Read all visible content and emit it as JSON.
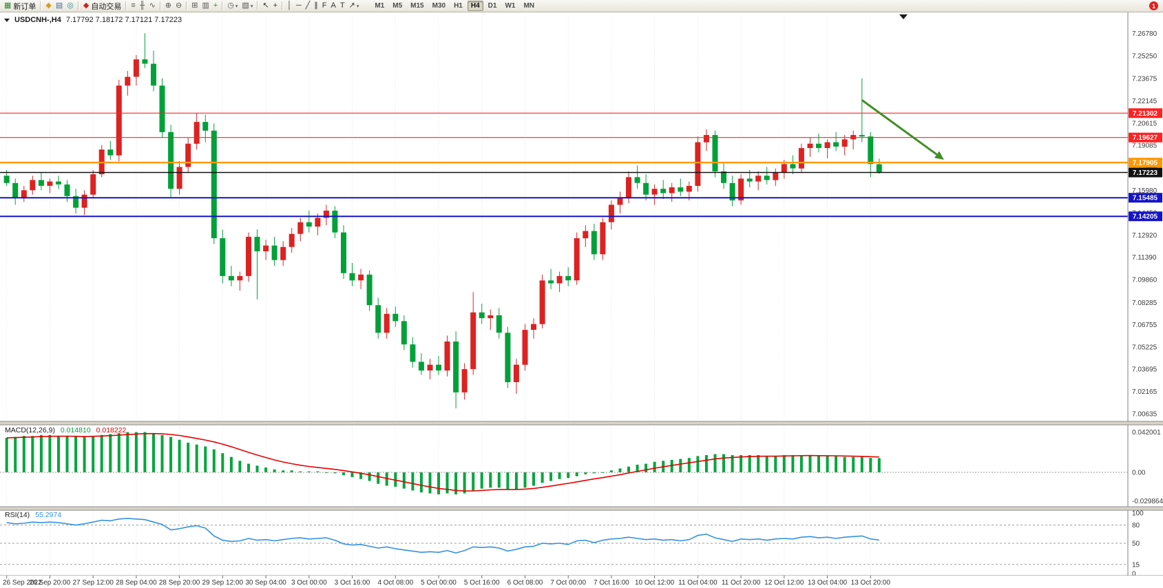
{
  "toolbar": {
    "notification_count": "1",
    "timeframes": [
      "M1",
      "M5",
      "M15",
      "M30",
      "H1",
      "H4",
      "D1",
      "W1",
      "MN"
    ],
    "active_timeframe": "H4",
    "groups": [
      {
        "items": [
          {
            "name": "new-order-button",
            "glyph": "▦",
            "glyph_color": "#2e8b2e",
            "label": "新订单"
          }
        ]
      },
      {
        "items": [
          {
            "name": "market-watch-icon",
            "glyph": "◆",
            "glyph_color": "#d4a017"
          },
          {
            "name": "data-window-icon",
            "glyph": "▤",
            "glyph_color": "#4a6da0"
          },
          {
            "name": "navigator-icon",
            "glyph": "◎",
            "glyph_color": "#2e8b8b"
          }
        ]
      },
      {
        "items": [
          {
            "name": "autotrading-button",
            "glyph": "◆",
            "glyph_color": "#cc2222",
            "label": "自动交易"
          }
        ]
      },
      {
        "items": [
          {
            "name": "bar-chart-icon",
            "glyph": "≡",
            "glyph_color": "#555555"
          },
          {
            "name": "candlestick-chart-icon",
            "glyph": "╫",
            "glyph_color": "#555555"
          },
          {
            "name": "line-chart-icon",
            "glyph": "∿",
            "glyph_color": "#555555"
          }
        ]
      },
      {
        "items": [
          {
            "name": "zoom-in-icon",
            "glyph": "⊕",
            "glyph_color": "#555555"
          },
          {
            "name": "zoom-out-icon",
            "glyph": "⊖",
            "glyph_color": "#555555"
          }
        ]
      },
      {
        "items": [
          {
            "name": "tile-windows-icon",
            "glyph": "⊞",
            "glyph_color": "#555555"
          },
          {
            "name": "auto-arrange-icon",
            "glyph": "▥",
            "glyph_color": "#555555"
          },
          {
            "name": "new-chart-icon",
            "glyph": "+",
            "glyph_color": "#2e8b2e"
          }
        ]
      },
      {
        "items": [
          {
            "name": "periods-icon",
            "glyph": "◷",
            "glyph_color": "#555555",
            "caret": true
          },
          {
            "name": "templates-icon",
            "glyph": "▧",
            "glyph_color": "#555555",
            "caret": true
          }
        ]
      },
      {
        "items": [
          {
            "name": "cursor-icon",
            "glyph": "↖",
            "glyph_color": "#333333"
          },
          {
            "name": "crosshair-icon",
            "glyph": "+",
            "glyph_color": "#333333"
          }
        ]
      },
      {
        "items": [
          {
            "name": "vertical-line-icon",
            "glyph": "│",
            "glyph_color": "#333333"
          },
          {
            "name": "horizontal-line-icon",
            "glyph": "─",
            "glyph_color": "#333333"
          },
          {
            "name": "trendline-icon",
            "glyph": "╱",
            "glyph_color": "#333333"
          },
          {
            "name": "channel-icon",
            "glyph": "∥",
            "glyph_color": "#333333"
          },
          {
            "name": "fibonacci-icon",
            "glyph": "F",
            "glyph_color": "#333333"
          },
          {
            "name": "text-icon",
            "glyph": "A",
            "glyph_color": "#333333"
          },
          {
            "name": "text-label-icon",
            "glyph": "T",
            "glyph_color": "#333333"
          },
          {
            "name": "arrows-icon",
            "glyph": "↗",
            "glyph_color": "#333333",
            "caret": true
          }
        ]
      }
    ]
  },
  "chart": {
    "title": "USDCNH-,H4",
    "ohlc": "7.17792 7.18172 7.17121 7.17223"
  },
  "chart_data": {
    "type": "candlestick",
    "symbol": "USDCNH-",
    "timeframe": "H4",
    "current_ohlc": {
      "open": "7.17792",
      "high": "7.18172",
      "low": "7.17121",
      "close": "7.17223"
    },
    "up_color": "#dd2222",
    "down_color": "#00a139",
    "price_axis_ticks": [
      "7.26780",
      "7.25250",
      "7.23675",
      "7.22145",
      "7.20615",
      "7.19085",
      "7.17555",
      "7.15980",
      "7.14450",
      "7.12920",
      "7.11390",
      "7.09860",
      "7.08285",
      "7.06755",
      "7.05225",
      "7.03695",
      "7.02165",
      "7.00635"
    ],
    "time_axis_labels": [
      "26 Sep 2022",
      "26 Sep 20:00",
      "27 Sep 12:00",
      "28 Sep 04:00",
      "28 Sep 20:00",
      "29 Sep 12:00",
      "30 Sep 04:00",
      "3 Oct 00:00",
      "3 Oct 16:00",
      "4 Oct 08:00",
      "5 Oct 00:00",
      "5 Oct 16:00",
      "6 Oct 08:00",
      "7 Oct 00:00",
      "7 Oct 16:00",
      "10 Oct 12:00",
      "11 Oct 04:00",
      "11 Oct 20:00",
      "12 Oct 12:00",
      "13 Oct 04:00",
      "13 Oct 20:00"
    ],
    "candles_ohlc": [
      [
        7.17,
        7.174,
        7.163,
        7.165
      ],
      [
        7.165,
        7.168,
        7.15,
        7.155
      ],
      [
        7.155,
        7.163,
        7.152,
        7.16
      ],
      [
        7.16,
        7.17,
        7.157,
        7.167
      ],
      [
        7.167,
        7.172,
        7.16,
        7.163
      ],
      [
        7.163,
        7.168,
        7.158,
        7.166
      ],
      [
        7.166,
        7.17,
        7.161,
        7.164
      ],
      [
        7.164,
        7.167,
        7.152,
        7.156
      ],
      [
        7.156,
        7.161,
        7.144,
        7.148
      ],
      [
        7.148,
        7.16,
        7.143,
        7.157
      ],
      [
        7.157,
        7.174,
        7.155,
        7.171
      ],
      [
        7.171,
        7.191,
        7.169,
        7.188
      ],
      [
        7.188,
        7.194,
        7.181,
        7.184
      ],
      [
        7.184,
        7.236,
        7.18,
        7.232
      ],
      [
        7.232,
        7.242,
        7.225,
        7.238
      ],
      [
        7.238,
        7.253,
        7.232,
        7.25
      ],
      [
        7.25,
        7.268,
        7.244,
        7.247
      ],
      [
        7.247,
        7.256,
        7.228,
        7.232
      ],
      [
        7.232,
        7.237,
        7.196,
        7.2
      ],
      [
        7.2,
        7.205,
        7.155,
        7.161
      ],
      [
        7.161,
        7.18,
        7.157,
        7.176
      ],
      [
        7.176,
        7.196,
        7.172,
        7.192
      ],
      [
        7.192,
        7.213,
        7.188,
        7.207
      ],
      [
        7.207,
        7.212,
        7.193,
        7.201
      ],
      [
        7.201,
        7.206,
        7.123,
        7.127
      ],
      [
        7.127,
        7.133,
        7.096,
        7.101
      ],
      [
        7.101,
        7.108,
        7.094,
        7.098
      ],
      [
        7.098,
        7.104,
        7.091,
        7.101
      ],
      [
        7.101,
        7.131,
        7.097,
        7.128
      ],
      [
        7.128,
        7.133,
        7.085,
        7.118
      ],
      [
        7.118,
        7.126,
        7.112,
        7.122
      ],
      [
        7.122,
        7.128,
        7.108,
        7.112
      ],
      [
        7.112,
        7.125,
        7.108,
        7.121
      ],
      [
        7.121,
        7.134,
        7.117,
        7.13
      ],
      [
        7.13,
        7.141,
        7.125,
        7.138
      ],
      [
        7.138,
        7.146,
        7.131,
        7.135
      ],
      [
        7.135,
        7.144,
        7.129,
        7.141
      ],
      [
        7.141,
        7.15,
        7.136,
        7.146
      ],
      [
        7.146,
        7.149,
        7.127,
        7.131
      ],
      [
        7.131,
        7.136,
        7.099,
        7.103
      ],
      [
        7.103,
        7.11,
        7.094,
        7.098
      ],
      [
        7.098,
        7.106,
        7.092,
        7.102
      ],
      [
        7.102,
        7.105,
        7.077,
        7.081
      ],
      [
        7.081,
        7.086,
        7.058,
        7.062
      ],
      [
        7.062,
        7.079,
        7.058,
        7.075
      ],
      [
        7.075,
        7.08,
        7.066,
        7.07
      ],
      [
        7.07,
        7.074,
        7.05,
        7.054
      ],
      [
        7.054,
        7.059,
        7.038,
        7.042
      ],
      [
        7.042,
        7.048,
        7.033,
        7.036
      ],
      [
        7.036,
        7.044,
        7.03,
        7.04
      ],
      [
        7.04,
        7.046,
        7.033,
        7.036
      ],
      [
        7.036,
        7.06,
        7.032,
        7.056
      ],
      [
        7.056,
        7.063,
        7.01,
        7.021
      ],
      [
        7.021,
        7.041,
        7.016,
        7.037
      ],
      [
        7.037,
        7.09,
        7.033,
        7.076
      ],
      [
        7.076,
        7.082,
        7.068,
        7.072
      ],
      [
        7.072,
        7.078,
        7.064,
        7.074
      ],
      [
        7.074,
        7.079,
        7.058,
        7.062
      ],
      [
        7.062,
        7.066,
        7.024,
        7.028
      ],
      [
        7.028,
        7.044,
        7.02,
        7.04
      ],
      [
        7.04,
        7.068,
        7.036,
        7.064
      ],
      [
        7.064,
        7.072,
        7.058,
        7.068
      ],
      [
        7.068,
        7.102,
        7.065,
        7.098
      ],
      [
        7.098,
        7.106,
        7.092,
        7.096
      ],
      [
        7.096,
        7.104,
        7.09,
        7.101
      ],
      [
        7.101,
        7.107,
        7.094,
        7.098
      ],
      [
        7.098,
        7.131,
        7.095,
        7.127
      ],
      [
        7.127,
        7.136,
        7.121,
        7.132
      ],
      [
        7.132,
        7.137,
        7.112,
        7.116
      ],
      [
        7.116,
        7.141,
        7.112,
        7.138
      ],
      [
        7.138,
        7.153,
        7.133,
        7.15
      ],
      [
        7.15,
        7.159,
        7.144,
        7.155
      ],
      [
        7.155,
        7.173,
        7.151,
        7.169
      ],
      [
        7.169,
        7.177,
        7.161,
        7.165
      ],
      [
        7.165,
        7.171,
        7.153,
        7.157
      ],
      [
        7.157,
        7.164,
        7.15,
        7.161
      ],
      [
        7.161,
        7.167,
        7.154,
        7.158
      ],
      [
        7.158,
        7.165,
        7.152,
        7.162
      ],
      [
        7.162,
        7.168,
        7.156,
        7.159
      ],
      [
        7.159,
        7.166,
        7.153,
        7.163
      ],
      [
        7.163,
        7.197,
        7.159,
        7.193
      ],
      [
        7.193,
        7.202,
        7.187,
        7.198
      ],
      [
        7.198,
        7.201,
        7.169,
        7.173
      ],
      [
        7.173,
        7.179,
        7.161,
        7.165
      ],
      [
        7.165,
        7.17,
        7.149,
        7.153
      ],
      [
        7.153,
        7.171,
        7.15,
        7.168
      ],
      [
        7.168,
        7.174,
        7.162,
        7.166
      ],
      [
        7.166,
        7.173,
        7.16,
        7.17
      ],
      [
        7.17,
        7.176,
        7.164,
        7.167
      ],
      [
        7.167,
        7.175,
        7.163,
        7.172
      ],
      [
        7.172,
        7.181,
        7.168,
        7.178
      ],
      [
        7.178,
        7.184,
        7.171,
        7.175
      ],
      [
        7.175,
        7.192,
        7.172,
        7.189
      ],
      [
        7.189,
        7.196,
        7.183,
        7.192
      ],
      [
        7.192,
        7.199,
        7.186,
        7.189
      ],
      [
        7.189,
        7.195,
        7.182,
        7.193
      ],
      [
        7.193,
        7.2,
        7.187,
        7.19
      ],
      [
        7.19,
        7.198,
        7.184,
        7.195
      ],
      [
        7.195,
        7.201,
        7.188,
        7.198
      ],
      [
        7.198,
        7.237,
        7.193,
        7.197
      ],
      [
        7.197,
        7.2,
        7.169,
        7.178
      ],
      [
        7.17792,
        7.18172,
        7.17121,
        7.17223
      ]
    ],
    "hlines": [
      {
        "price": 7.21302,
        "label": "7.21302",
        "color": "#ff2222",
        "width": 1.2
      },
      {
        "price": 7.19627,
        "label": "7.19627",
        "color": "#ff2222",
        "width": 1.2
      },
      {
        "price": 7.17905,
        "label": "7.17905",
        "color": "#ff9800",
        "width": 2.4
      },
      {
        "price": 7.17223,
        "label": "7.17223",
        "color": "#111111",
        "width": 1.5
      },
      {
        "price": 7.15485,
        "label": "7.15485",
        "color": "#1414c8",
        "width": 2
      },
      {
        "price": 7.14205,
        "label": "7.14205",
        "color": "#1414c8",
        "width": 2
      }
    ],
    "arrow": {
      "from_candle": 99,
      "from_price": 7.222,
      "to_candle": 108.5,
      "to_price": 7.181,
      "color": "#3f8f24"
    },
    "macd": {
      "name": "MACD(12,26,9)",
      "value_main": "0.014810",
      "value_signal": "0.018222",
      "hist_color": "#00a63c",
      "signal_color": "#e60000",
      "axis_ticks": [
        "0.042001",
        "0.00",
        "-0.029864"
      ],
      "axis_tick_values": [
        0.042001,
        0,
        -0.029864
      ],
      "histogram": [
        0.036,
        0.037,
        0.038,
        0.038,
        0.039,
        0.039,
        0.038,
        0.038,
        0.037,
        0.037,
        0.038,
        0.039,
        0.04,
        0.041,
        0.042,
        0.042,
        0.042,
        0.041,
        0.039,
        0.037,
        0.034,
        0.031,
        0.029,
        0.027,
        0.024,
        0.02,
        0.016,
        0.012,
        0.009,
        0.007,
        0.005,
        0.003,
        0.002,
        0.002,
        0.001,
        0.001,
        0.001,
        0.0,
        -0.001,
        -0.003,
        -0.005,
        -0.007,
        -0.009,
        -0.012,
        -0.014,
        -0.015,
        -0.017,
        -0.019,
        -0.021,
        -0.022,
        -0.023,
        -0.022,
        -0.023,
        -0.022,
        -0.019,
        -0.017,
        -0.016,
        -0.016,
        -0.018,
        -0.018,
        -0.016,
        -0.014,
        -0.011,
        -0.009,
        -0.007,
        -0.006,
        -0.004,
        -0.002,
        -0.001,
        0.0,
        0.002,
        0.004,
        0.006,
        0.008,
        0.009,
        0.011,
        0.012,
        0.013,
        0.014,
        0.015,
        0.017,
        0.018,
        0.019,
        0.019,
        0.018,
        0.018,
        0.018,
        0.018,
        0.017,
        0.017,
        0.018,
        0.018,
        0.018,
        0.018,
        0.017,
        0.017,
        0.017,
        0.016,
        0.016,
        0.016,
        0.015,
        0.0148
      ]
    },
    "rsi": {
      "name": "RSI(14)",
      "value": "55.2974",
      "line_color": "#3391e0",
      "levels": [
        100,
        80,
        50,
        15,
        0
      ],
      "dashed_levels": [
        80,
        50,
        15
      ],
      "series": [
        84,
        82,
        83,
        85,
        84,
        85,
        84,
        82,
        80,
        82,
        85,
        88,
        87,
        90,
        91,
        90,
        89,
        85,
        81,
        72,
        74,
        77,
        79,
        75,
        62,
        55,
        53,
        54,
        58,
        55,
        56,
        54,
        56,
        58,
        59,
        57,
        58,
        59,
        55,
        49,
        47,
        48,
        45,
        42,
        44,
        41,
        39,
        37,
        35,
        36,
        35,
        38,
        34,
        38,
        44,
        43,
        44,
        42,
        37,
        40,
        44,
        45,
        50,
        49,
        50,
        48,
        54,
        55,
        51,
        55,
        57,
        58,
        60,
        58,
        56,
        57,
        55,
        56,
        54,
        56,
        63,
        65,
        59,
        56,
        53,
        57,
        56,
        57,
        55,
        57,
        58,
        57,
        60,
        61,
        59,
        60,
        58,
        60,
        61,
        62,
        57,
        55.3
      ]
    }
  }
}
